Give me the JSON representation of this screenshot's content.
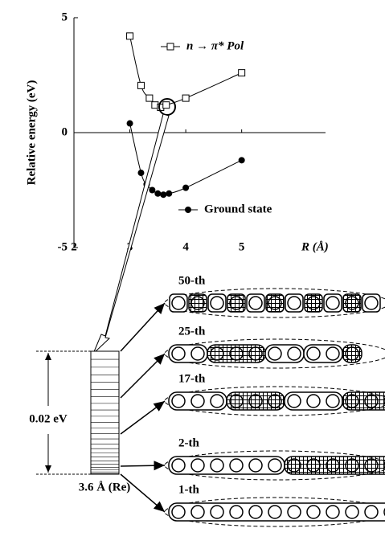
{
  "chart_data": {
    "type": "line",
    "y_label": "Relative energy (eV)",
    "x_label": "R (Å)",
    "xlim": [
      2,
      6.5
    ],
    "ylim": [
      -5,
      5
    ],
    "xticks": [
      2,
      3,
      4,
      5
    ],
    "yticks": [
      -5,
      0,
      5
    ],
    "series": [
      {
        "name": "n → π* Pol",
        "marker": "square",
        "color": "#000000",
        "x": [
          3.0,
          3.2,
          3.35,
          3.45,
          3.55,
          3.65,
          4.0,
          5.0
        ],
        "values": [
          4.2,
          2.05,
          1.5,
          1.2,
          1.1,
          1.2,
          1.5,
          2.6
        ]
      },
      {
        "name": "Ground state",
        "marker": "circle",
        "color": "#000000",
        "x": [
          3.0,
          3.2,
          3.3,
          3.4,
          3.5,
          3.6,
          3.7,
          4.0,
          5.0
        ],
        "values": [
          0.4,
          -1.75,
          -2.25,
          -2.5,
          -2.65,
          -2.7,
          -2.65,
          -2.4,
          -1.2
        ]
      }
    ]
  },
  "diagram": {
    "energy_gap": "0.02 eV",
    "geometry": "3.6 Å (Re)",
    "states": [
      "50-th",
      "25-th",
      "17-th",
      "2-th",
      "1-th"
    ]
  }
}
